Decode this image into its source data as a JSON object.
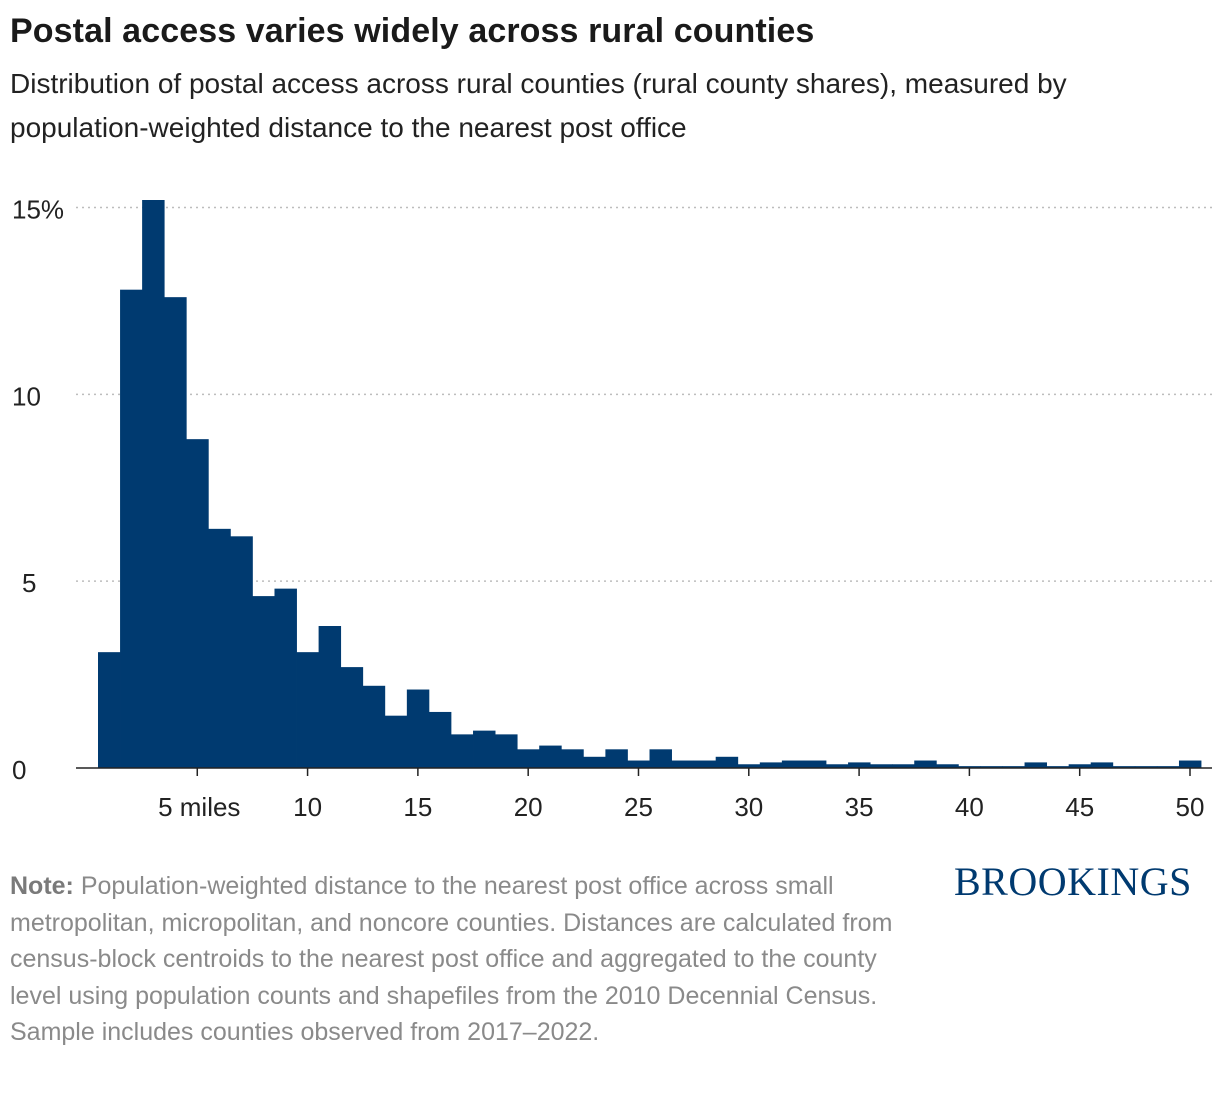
{
  "header": {
    "title": "Postal access varies widely across rural counties",
    "subtitle": "Distribution of postal access across rural counties (rural county shares), measured by population-weighted distance to the nearest post office"
  },
  "note": {
    "label": "Note:",
    "text": " Population-weighted distance to the nearest post office across small metropolitan, micropolitan, and noncore counties. Distances are calculated from census-block centroids to the nearest post office and aggregated to the county level using population counts and shapefiles from the 2010 Decennial Census. Sample includes counties observed from 2017–2022."
  },
  "brand": {
    "logo": "BROOKINGS"
  },
  "colors": {
    "bar": "#003a70",
    "grid": "#bdbdbd",
    "axis": "#222222"
  },
  "chart_data": {
    "type": "bar",
    "bin_width": 1,
    "bin_starts": [
      0.5,
      1.5,
      2.5,
      3.5,
      4.5,
      5.5,
      6.5,
      7.5,
      8.5,
      9.5,
      10.5,
      11.5,
      12.5,
      13.5,
      14.5,
      15.5,
      16.5,
      17.5,
      18.5,
      19.5,
      20.5,
      21.5,
      22.5,
      23.5,
      24.5,
      25.5,
      26.5,
      27.5,
      28.5,
      29.5,
      30.5,
      31.5,
      32.5,
      33.5,
      34.5,
      35.5,
      36.5,
      37.5,
      38.5,
      39.5,
      40.5,
      41.5,
      42.5,
      43.5,
      44.5,
      45.5,
      46.5,
      47.5,
      48.5,
      49.5
    ],
    "values": [
      3.1,
      12.8,
      15.2,
      12.6,
      8.8,
      6.4,
      6.2,
      4.6,
      4.8,
      3.1,
      3.8,
      2.7,
      2.2,
      1.4,
      2.1,
      1.5,
      0.9,
      1.0,
      0.9,
      0.5,
      0.6,
      0.5,
      0.3,
      0.5,
      0.2,
      0.5,
      0.2,
      0.2,
      0.3,
      0.1,
      0.15,
      0.2,
      0.2,
      0.1,
      0.15,
      0.1,
      0.1,
      0.2,
      0.1,
      0.05,
      0.05,
      0.05,
      0.15,
      0.05,
      0.1,
      0.15,
      0.05,
      0.05,
      0.05,
      0.2
    ],
    "xlim": [
      0.5,
      51
    ],
    "ylim": [
      0,
      15.2
    ],
    "x_ticks": [
      5,
      10,
      15,
      20,
      25,
      30,
      35,
      40,
      45,
      50
    ],
    "x_tick_labels": [
      "5 miles",
      "10",
      "15",
      "20",
      "25",
      "30",
      "35",
      "40",
      "45",
      "50"
    ],
    "y_ticks": [
      0,
      5,
      10,
      15
    ],
    "y_tick_labels": [
      "0",
      "5",
      "10",
      "15%"
    ],
    "grid": "horizontal dotted",
    "legend": "none"
  }
}
